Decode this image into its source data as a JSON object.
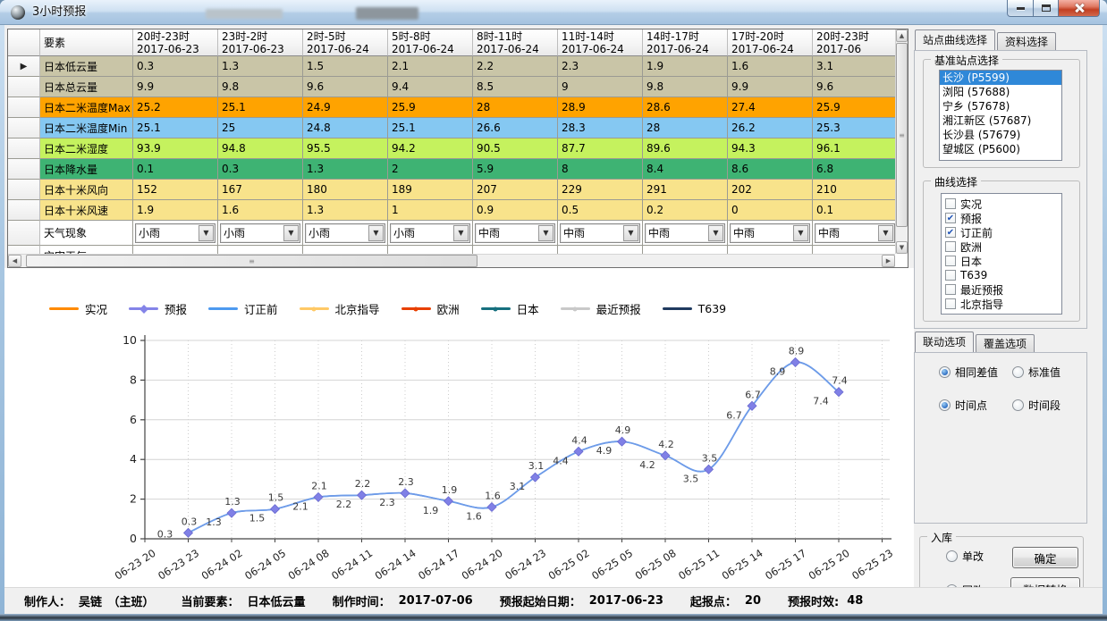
{
  "window": {
    "title": "3小时预报"
  },
  "icons": {
    "row_arrow": "▶",
    "combo_arrow": "▼",
    "check": "✔",
    "scroll_up": "▲",
    "scroll_down": "▼",
    "scroll_left": "◀",
    "scroll_right": "▶",
    "grip": "≡"
  },
  "table": {
    "element_header": "要素",
    "columns": [
      {
        "time": "20时-23时",
        "date": "2017-06-23"
      },
      {
        "time": "23时-2时",
        "date": "2017-06-23"
      },
      {
        "time": "2时-5时",
        "date": "2017-06-24"
      },
      {
        "time": "5时-8时",
        "date": "2017-06-24"
      },
      {
        "time": "8时-11时",
        "date": "2017-06-24"
      },
      {
        "time": "11时-14时",
        "date": "2017-06-24"
      },
      {
        "time": "14时-17时",
        "date": "2017-06-24"
      },
      {
        "time": "17时-20时",
        "date": "2017-06-24"
      },
      {
        "time": "20时-23时",
        "date": "2017-06"
      }
    ],
    "rows": [
      {
        "label": "日本低云量",
        "color": "#c9c5a7",
        "values": [
          "0.3",
          "1.3",
          "1.5",
          "2.1",
          "2.2",
          "2.3",
          "1.9",
          "1.6",
          "3.1"
        ]
      },
      {
        "label": "日本总云量",
        "color": "#c9c5a7",
        "values": [
          "9.9",
          "9.8",
          "9.6",
          "9.4",
          "8.5",
          "9",
          "9.8",
          "9.9",
          "9.6"
        ]
      },
      {
        "label": "日本二米温度Max",
        "color": "#ffa300",
        "values": [
          "25.2",
          "25.1",
          "24.9",
          "25.9",
          "28",
          "28.9",
          "28.6",
          "27.4",
          "25.9"
        ]
      },
      {
        "label": "日本二米温度Min",
        "color": "#85c8f2",
        "values": [
          "25.1",
          "25",
          "24.8",
          "25.1",
          "26.6",
          "28.3",
          "28",
          "26.2",
          "25.3"
        ]
      },
      {
        "label": "日本二米湿度",
        "color": "#c5f25e",
        "values": [
          "93.9",
          "94.8",
          "95.5",
          "94.2",
          "90.5",
          "87.7",
          "89.6",
          "94.3",
          "96.1"
        ]
      },
      {
        "label": "日本降水量",
        "color": "#3eb373",
        "values": [
          "0.1",
          "0.3",
          "1.3",
          "2",
          "5.9",
          "8",
          "8.4",
          "8.6",
          "6.8"
        ]
      },
      {
        "label": "日本十米风向",
        "color": "#f8e38b",
        "values": [
          "152",
          "167",
          "180",
          "189",
          "207",
          "229",
          "291",
          "202",
          "210"
        ]
      },
      {
        "label": "日本十米风速",
        "color": "#f8e38b",
        "values": [
          "1.9",
          "1.6",
          "1.3",
          "1",
          "0.9",
          "0.5",
          "0.2",
          "0",
          "0.1"
        ]
      },
      {
        "label": "天气现象",
        "type": "combo",
        "dropdowns": [
          "小雨",
          "小雨",
          "小雨",
          "小雨",
          "中雨",
          "中雨",
          "中雨",
          "中雨",
          "中雨"
        ]
      },
      {
        "label": "灾害天气",
        "type": "empty",
        "values": [
          "",
          "",
          "",
          "",
          "",
          "",
          "",
          "",
          ""
        ]
      }
    ]
  },
  "chart_data": {
    "type": "line",
    "title": "",
    "xlabel": "",
    "ylabel": "",
    "ylim": [
      0,
      10
    ],
    "ytick_step": 2,
    "grid": true,
    "legend_position": "top-left",
    "x_categories": [
      "06-23 20",
      "06-23 23",
      "06-24 02",
      "06-24 05",
      "06-24 08",
      "06-24 11",
      "06-24 14",
      "06-24 17",
      "06-24 20",
      "06-24 23",
      "06-25 02",
      "06-25 05",
      "06-25 08",
      "06-25 11",
      "06-25 14",
      "06-25 17",
      "06-25 20",
      "06-25 23"
    ],
    "legend": [
      {
        "label": "实况",
        "color": "#ff8a00",
        "marker": "none"
      },
      {
        "label": "预报",
        "color": "#8484e8",
        "marker": "diamond"
      },
      {
        "label": "订正前",
        "color": "#4d9af0",
        "marker": "none"
      },
      {
        "label": "北京指导",
        "color": "#ffc966",
        "marker": "dot"
      },
      {
        "label": "欧洲",
        "color": "#e84000",
        "marker": "dot"
      },
      {
        "label": "日本",
        "color": "#17707f",
        "marker": "dot"
      },
      {
        "label": "最近预报",
        "color": "#c9c9c9",
        "marker": "dot"
      },
      {
        "label": "T639",
        "color": "#1f3a5f",
        "marker": "none"
      }
    ],
    "series": [
      {
        "name": "预报",
        "color": "#8080e6",
        "line_color": "#6f9be8",
        "marker": "diamond",
        "label_side": "above",
        "x_start_index": 1,
        "values": [
          0.3,
          1.3,
          1.5,
          2.1,
          2.2,
          2.3,
          1.9,
          1.6,
          3.1,
          4.4,
          4.9,
          4.2,
          3.5,
          6.7,
          8.9,
          7.4
        ]
      },
      {
        "name": "订正前",
        "color": "#4d9af0",
        "line_color": "#4d9af0",
        "marker": "none",
        "label_side": "below",
        "x_start_index": 1,
        "values": [
          0.3,
          1.3,
          1.5,
          2.1,
          2.2,
          2.3,
          1.9,
          1.6,
          3.1,
          4.4,
          4.9,
          4.2,
          3.5,
          6.7,
          8.9,
          7.4
        ]
      }
    ]
  },
  "right_panel": {
    "tabs": [
      {
        "label": "站点曲线选择",
        "active": true
      },
      {
        "label": "资料选择",
        "active": false
      }
    ],
    "station_group_title": "基准站点选择",
    "stations": [
      {
        "label": "长沙 (P5599)",
        "selected": true
      },
      {
        "label": "浏阳 (57688)",
        "selected": false
      },
      {
        "label": "宁乡 (57678)",
        "selected": false
      },
      {
        "label": "湘江新区 (57687)",
        "selected": false
      },
      {
        "label": "长沙县 (57679)",
        "selected": false
      },
      {
        "label": "望城区 (P5600)",
        "selected": false
      }
    ],
    "curve_group_title": "曲线选择",
    "curves": [
      {
        "label": "实况",
        "checked": false
      },
      {
        "label": "预报",
        "checked": true
      },
      {
        "label": "订正前",
        "checked": true
      },
      {
        "label": "欧洲",
        "checked": false
      },
      {
        "label": "日本",
        "checked": false
      },
      {
        "label": "T639",
        "checked": false
      },
      {
        "label": "最近预报",
        "checked": false
      },
      {
        "label": "北京指导",
        "checked": false
      }
    ],
    "link_tabs": [
      {
        "label": "联动选项",
        "active": true
      },
      {
        "label": "覆盖选项",
        "active": false
      }
    ],
    "link_radios": [
      {
        "label": "相同差值",
        "selected": true
      },
      {
        "label": "标准值",
        "selected": false
      },
      {
        "label": "时间点",
        "selected": true
      },
      {
        "label": "时间段",
        "selected": false
      }
    ],
    "storage_group_title": "入库",
    "storage_radios": [
      {
        "label": "单改",
        "selected": false
      },
      {
        "label": "同改",
        "selected": true
      }
    ],
    "storage_buttons": [
      {
        "label": "确定"
      },
      {
        "label": "数据转换"
      }
    ]
  },
  "status_bar": {
    "items": [
      {
        "label": "制作人：",
        "value": "吴链　（主班）"
      },
      {
        "label": "当前要素：",
        "value": "日本低云量"
      },
      {
        "label": "制作时间：",
        "value": "2017-07-06"
      },
      {
        "label": "预报起始日期：",
        "value": "2017-06-23"
      },
      {
        "label": "起报点：",
        "value": "20"
      },
      {
        "label": "预报时效:",
        "value": "48"
      }
    ]
  }
}
